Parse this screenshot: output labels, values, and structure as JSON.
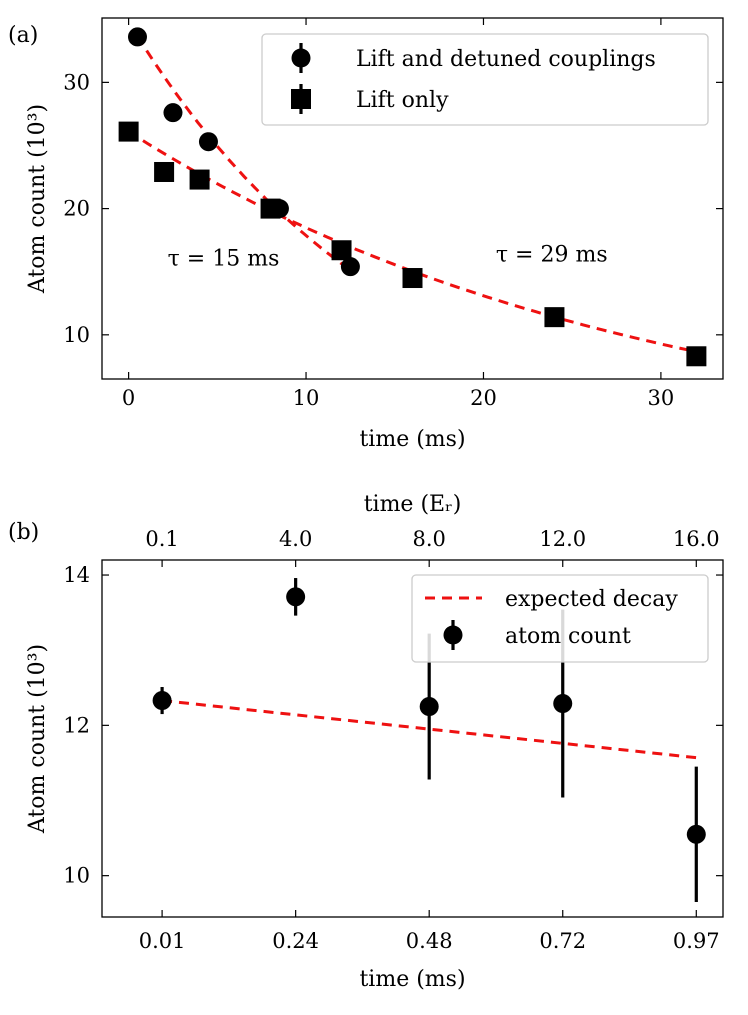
{
  "chart_data": [
    {
      "type": "scatter",
      "panel_label": "(a)",
      "xlabel": "time (ms)",
      "ylabel": "Atom count (10³)",
      "xlim": [
        -1.5,
        33.5
      ],
      "ylim": [
        6.5,
        35.1
      ],
      "xticks": [
        0,
        10,
        20,
        30
      ],
      "yticks": [
        10,
        20,
        30
      ],
      "legend": {
        "position": "top-right"
      },
      "series": [
        {
          "name": "Lift and detuned couplings",
          "marker": "circle",
          "x": [
            0.5,
            2.5,
            4.5,
            8.5,
            12.5
          ],
          "y": [
            33.6,
            27.6,
            25.3,
            20.0,
            15.4
          ]
        },
        {
          "name": "Lift only",
          "marker": "square",
          "x": [
            0,
            2,
            4,
            8,
            12,
            16,
            24,
            32
          ],
          "y": [
            26.1,
            22.9,
            22.3,
            20.0,
            16.7,
            14.5,
            11.4,
            8.3
          ]
        }
      ],
      "fits": [
        {
          "style": "red-dashed",
          "x_range": [
            0.5,
            12.5
          ],
          "A": 34.8,
          "tau": 15
        },
        {
          "style": "red-dashed",
          "x_range": [
            0,
            32
          ],
          "A": 26.1,
          "tau": 29
        }
      ],
      "annotations": [
        {
          "text": "τ = 15 ms",
          "x": 2.2,
          "y": 15.5
        },
        {
          "text": "τ = 29 ms",
          "x": 20.7,
          "y": 15.8
        }
      ]
    },
    {
      "type": "scatter",
      "panel_label": "(b)",
      "xlabel": "time (ms)",
      "top_xlabel": "time (Eᵣ)",
      "ylabel": "Atom count (10³)",
      "xlim": [
        -0.45,
        4.2
      ],
      "ylim": [
        9.45,
        14.2
      ],
      "xtick_positions": [
        0,
        1,
        2,
        3,
        4
      ],
      "xtick_labels": [
        "0.01",
        "0.24",
        "0.48",
        "0.72",
        "0.97"
      ],
      "top_xtick_labels": [
        "0.1",
        "4.0",
        "8.0",
        "12.0",
        "16.0"
      ],
      "yticks": [
        10,
        12,
        14
      ],
      "legend": {
        "position": "top-right"
      },
      "series": [
        {
          "name": "atom count",
          "marker": "circle",
          "x": [
            0,
            1,
            2,
            3,
            4
          ],
          "y": [
            12.33,
            13.71,
            12.25,
            12.29,
            10.55
          ],
          "yerr": [
            0.18,
            0.25,
            0.97,
            1.25,
            0.9
          ]
        },
        {
          "name": "expected decay",
          "style": "red-dashed",
          "x": [
            0,
            4
          ],
          "y": [
            12.33,
            11.57
          ]
        }
      ]
    }
  ]
}
